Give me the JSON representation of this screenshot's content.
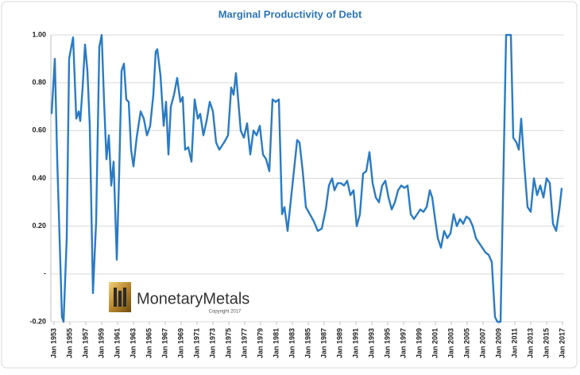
{
  "chart_data": {
    "type": "line",
    "title": "Marginal Productivity of Debt",
    "color": "#2a7bc4",
    "grid": true,
    "xlim": [
      1952.6,
      2017.2
    ],
    "ylim": [
      -0.2,
      1.0
    ],
    "yticks": [
      {
        "value": 1.0,
        "label": "1.00"
      },
      {
        "value": 0.8,
        "label": "0.80"
      },
      {
        "value": 0.6,
        "label": "0.60"
      },
      {
        "value": 0.4,
        "label": "0.40"
      },
      {
        "value": 0.2,
        "label": "0.20"
      },
      {
        "value": 0,
        "label": "-"
      },
      {
        "value": -0.2,
        "label": "-0.20"
      }
    ],
    "xticks": [
      {
        "value": 1953,
        "label": "Jan 1953"
      },
      {
        "value": 1955,
        "label": "Jan 1955"
      },
      {
        "value": 1957,
        "label": "Jan 1957"
      },
      {
        "value": 1959,
        "label": "Jan 1959"
      },
      {
        "value": 1961,
        "label": "Jan 1961"
      },
      {
        "value": 1963,
        "label": "Jan 1963"
      },
      {
        "value": 1965,
        "label": "Jan 1965"
      },
      {
        "value": 1967,
        "label": "Jan 1967"
      },
      {
        "value": 1969,
        "label": "Jan 1969"
      },
      {
        "value": 1971,
        "label": "Jan 1971"
      },
      {
        "value": 1973,
        "label": "Jan 1973"
      },
      {
        "value": 1975,
        "label": "Jan 1975"
      },
      {
        "value": 1977,
        "label": "Jan 1977"
      },
      {
        "value": 1979,
        "label": "Jan 1979"
      },
      {
        "value": 1981,
        "label": "Jan 1981"
      },
      {
        "value": 1983,
        "label": "Jan 1983"
      },
      {
        "value": 1985,
        "label": "Jan 1985"
      },
      {
        "value": 1987,
        "label": "Jan 1987"
      },
      {
        "value": 1989,
        "label": "Jan 1989"
      },
      {
        "value": 1991,
        "label": "Jan 1991"
      },
      {
        "value": 1993,
        "label": "Jan 1993"
      },
      {
        "value": 1995,
        "label": "Jan 1995"
      },
      {
        "value": 1997,
        "label": "Jan 1997"
      },
      {
        "value": 1999,
        "label": "Jan 1999"
      },
      {
        "value": 2001,
        "label": "Jan 2001"
      },
      {
        "value": 2003,
        "label": "Jan 2003"
      },
      {
        "value": 2005,
        "label": "Jan 2005"
      },
      {
        "value": 2007,
        "label": "Jan 2007"
      },
      {
        "value": 2009,
        "label": "Jan 2009"
      },
      {
        "value": 2011,
        "label": "Jan 2011"
      },
      {
        "value": 2013,
        "label": "Jan 2013"
      },
      {
        "value": 2015,
        "label": "Jan 2015"
      },
      {
        "value": 2017,
        "label": "Jan 2017"
      }
    ],
    "x": [
      1952.7,
      1953.1,
      1953.4,
      1954.0,
      1954.2,
      1954.6,
      1954.9,
      1955.4,
      1955.8,
      1956.1,
      1956.3,
      1956.6,
      1956.9,
      1957.2,
      1957.5,
      1957.9,
      1958.3,
      1958.7,
      1959.0,
      1959.3,
      1959.6,
      1959.9,
      1960.2,
      1960.5,
      1960.9,
      1961.2,
      1961.5,
      1961.8,
      1962.1,
      1962.4,
      1962.7,
      1963.0,
      1963.4,
      1963.9,
      1964.3,
      1964.7,
      1965.1,
      1965.5,
      1965.8,
      1966.0,
      1966.4,
      1966.8,
      1967.1,
      1967.4,
      1967.7,
      1968.1,
      1968.5,
      1968.9,
      1969.2,
      1969.5,
      1969.9,
      1970.3,
      1970.7,
      1971.1,
      1971.4,
      1971.8,
      1972.2,
      1972.6,
      1973.0,
      1973.4,
      1973.8,
      1974.4,
      1974.9,
      1975.3,
      1975.6,
      1975.9,
      1976.2,
      1976.5,
      1976.9,
      1977.3,
      1977.7,
      1978.1,
      1978.5,
      1978.9,
      1979.3,
      1979.7,
      1980.1,
      1980.5,
      1980.9,
      1981.3,
      1981.7,
      1982.0,
      1982.4,
      1983.0,
      1983.6,
      1983.9,
      1984.3,
      1984.7,
      1985.2,
      1985.7,
      1986.2,
      1986.7,
      1987.2,
      1987.6,
      1988.0,
      1988.3,
      1988.7,
      1989.1,
      1989.5,
      1989.9,
      1990.3,
      1990.7,
      1991.1,
      1991.5,
      1991.9,
      1992.3,
      1992.7,
      1993.1,
      1993.5,
      1993.9,
      1994.3,
      1994.7,
      1995.1,
      1995.5,
      1995.9,
      1996.3,
      1996.7,
      1997.1,
      1997.5,
      1997.9,
      1998.3,
      1998.7,
      1999.1,
      1999.5,
      1999.9,
      2000.3,
      2000.6,
      2001.0,
      2001.3,
      2001.7,
      2002.1,
      2002.5,
      2002.9,
      2003.3,
      2003.7,
      2004.1,
      2004.5,
      2004.9,
      2005.3,
      2005.7,
      2006.1,
      2006.5,
      2006.9,
      2007.3,
      2007.7,
      2008.1,
      2008.5,
      2008.8,
      2009.2,
      2009.6,
      2009.9,
      2010.5,
      2010.8,
      2011.2,
      2011.5,
      2011.8,
      2012.2,
      2012.6,
      2013.0,
      2013.4,
      2013.8,
      2014.2,
      2014.6,
      2015.0,
      2015.4,
      2015.8,
      2016.2,
      2016.6,
      2016.9
    ],
    "values": [
      0.67,
      0.9,
      0.48,
      -0.18,
      -0.2,
      0.15,
      0.9,
      0.99,
      0.65,
      0.68,
      0.64,
      0.78,
      0.96,
      0.85,
      0.62,
      -0.08,
      0.22,
      0.95,
      1.0,
      0.72,
      0.48,
      0.58,
      0.37,
      0.47,
      0.06,
      0.42,
      0.85,
      0.88,
      0.73,
      0.72,
      0.52,
      0.45,
      0.57,
      0.68,
      0.65,
      0.58,
      0.62,
      0.75,
      0.93,
      0.94,
      0.83,
      0.62,
      0.72,
      0.5,
      0.7,
      0.75,
      0.82,
      0.72,
      0.74,
      0.52,
      0.53,
      0.47,
      0.73,
      0.65,
      0.67,
      0.58,
      0.64,
      0.72,
      0.68,
      0.55,
      0.52,
      0.55,
      0.58,
      0.78,
      0.75,
      0.84,
      0.72,
      0.6,
      0.57,
      0.63,
      0.5,
      0.6,
      0.58,
      0.62,
      0.5,
      0.48,
      0.43,
      0.73,
      0.72,
      0.73,
      0.25,
      0.28,
      0.18,
      0.37,
      0.56,
      0.55,
      0.43,
      0.28,
      0.25,
      0.22,
      0.18,
      0.19,
      0.27,
      0.37,
      0.4,
      0.35,
      0.38,
      0.38,
      0.37,
      0.39,
      0.33,
      0.35,
      0.2,
      0.25,
      0.42,
      0.43,
      0.51,
      0.38,
      0.32,
      0.3,
      0.37,
      0.39,
      0.32,
      0.27,
      0.3,
      0.35,
      0.37,
      0.36,
      0.37,
      0.25,
      0.23,
      0.25,
      0.27,
      0.26,
      0.28,
      0.35,
      0.32,
      0.22,
      0.15,
      0.11,
      0.18,
      0.15,
      0.17,
      0.25,
      0.2,
      0.23,
      0.21,
      0.24,
      0.23,
      0.2,
      0.15,
      0.13,
      0.11,
      0.09,
      0.08,
      0.05,
      -0.18,
      -0.2,
      -0.2,
      0.48,
      1.0,
      1.0,
      0.57,
      0.55,
      0.52,
      0.65,
      0.45,
      0.28,
      0.26,
      0.4,
      0.33,
      0.37,
      0.32,
      0.4,
      0.38,
      0.21,
      0.18,
      0.27,
      0.36
    ],
    "annotations": [
      "MonetaryMetals",
      "Copyright 2017"
    ]
  }
}
